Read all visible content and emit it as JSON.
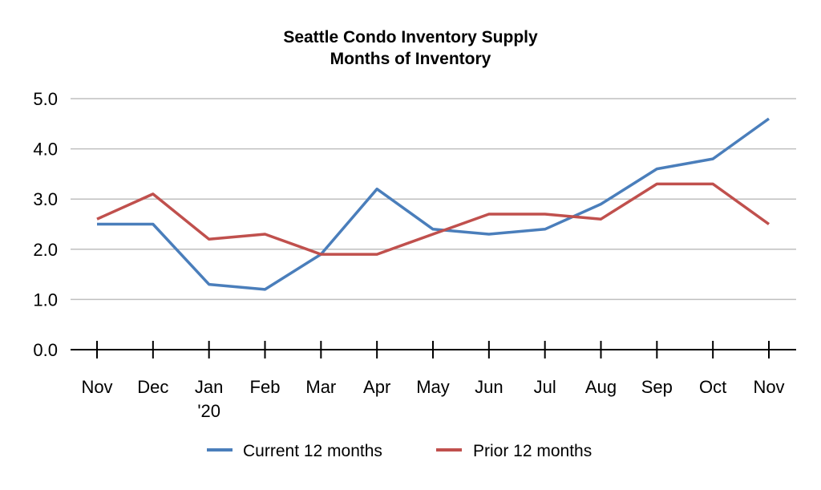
{
  "chart_data": {
    "type": "line",
    "title": "Seattle Condo Inventory Supply",
    "subtitle": "Months of Inventory",
    "xlabel": "",
    "ylabel": "",
    "categories": [
      "Nov",
      "Dec",
      "Jan\n'20",
      "Feb",
      "Mar",
      "Apr",
      "May",
      "Jun",
      "Jul",
      "Aug",
      "Sep",
      "Oct",
      "Nov"
    ],
    "ylim": [
      0,
      5
    ],
    "yticks": [
      "0.0",
      "1.0",
      "2.0",
      "3.0",
      "4.0",
      "5.0"
    ],
    "grid": true,
    "legend_position": "bottom",
    "series": [
      {
        "name": "Current 12 months",
        "color": "#4a7ebb",
        "values": [
          2.5,
          2.5,
          1.3,
          1.2,
          1.9,
          3.2,
          2.4,
          2.3,
          2.4,
          2.9,
          3.6,
          3.8,
          4.6
        ]
      },
      {
        "name": "Prior 12 months",
        "color": "#c0504d",
        "values": [
          2.6,
          3.1,
          2.2,
          2.3,
          1.9,
          1.9,
          2.3,
          2.7,
          2.7,
          2.6,
          3.3,
          3.3,
          2.5
        ]
      }
    ]
  }
}
